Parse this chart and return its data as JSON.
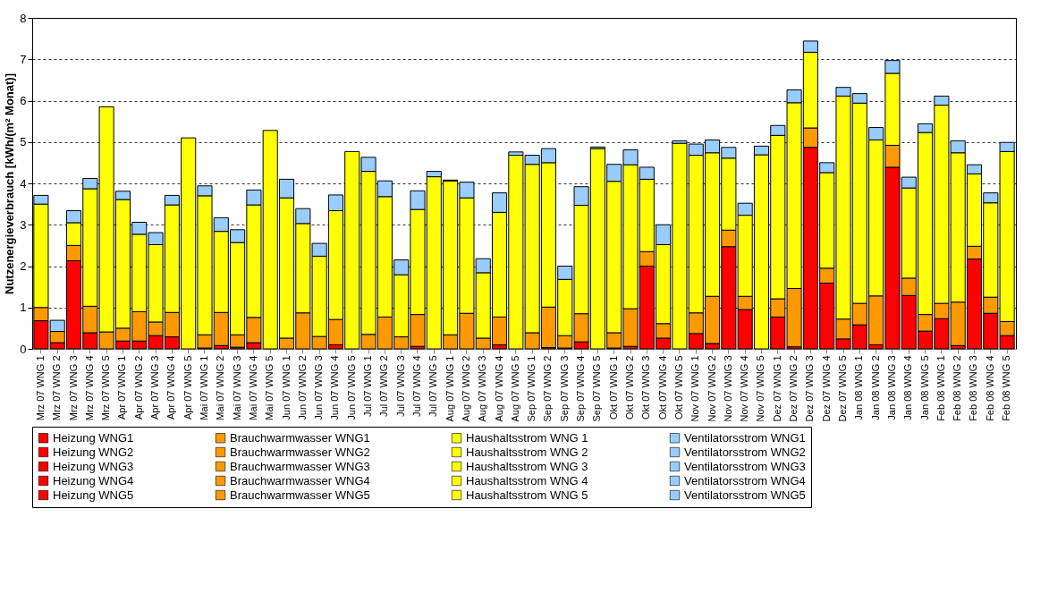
{
  "chart_data": {
    "type": "bar",
    "stacked": true,
    "ylabel": "Nutzenergieverbrauch [kWh/(m² Monat)]",
    "ylim": [
      0,
      8
    ],
    "yticks": [
      0,
      1,
      2,
      3,
      4,
      5,
      6,
      7,
      8
    ],
    "grid": "y",
    "legend": "bottom",
    "categories": [
      "Mrz 07 WNG 1",
      "Mrz 07 WNG 2",
      "Mrz 07 WNG 3",
      "Mrz 07 WNG 4",
      "Mrz 07 WNG 5",
      "Apr 07 WNG 1",
      "Apr 07 WNG 2",
      "Apr 07 WNG 3",
      "Apr 07 WNG 4",
      "Apr 07 WNG 5",
      "Mai 07 WNG 1",
      "Mai 07 WNG 2",
      "Mai 07 WNG 3",
      "Mai 07 WNG 4",
      "Mai 07 WNG 5",
      "Jun 07 WNG 1",
      "Jun 07 WNG 2",
      "Jun 07 WNG 3",
      "Jun 07 WNG 4",
      "Jun 07 WNG 5",
      "Jul 07 WNG 1",
      "Jul 07 WNG 2",
      "Jul 07 WNG 3",
      "Jul 07 WNG 4",
      "Jul 07 WNG 5",
      "Aug 07 WNG 1",
      "Aug 07 WNG 2",
      "Aug 07 WNG 3",
      "Aug 07 WNG 4",
      "Aug 07 WNG 5",
      "Sep 07 WNG 1",
      "Sep 07 WNG 2",
      "Sep 07 WNG 3",
      "Sep 07 WNG 4",
      "Sep 07 WNG 5",
      "Okt 07 WNG 1",
      "Okt 07 WNG 2",
      "Okt 07 WNG 3",
      "Okt 07 WNG 4",
      "Okt 07 WNG 5",
      "Nov 07 WNG 1",
      "Nov 07 WNG 2",
      "Nov 07 WNG 3",
      "Nov 07 WNG 4",
      "Nov 07 WNG 5",
      "Dez 07 WNG 1",
      "Dez 07 WNG 2",
      "Dez 07 WNG 3",
      "Dez 07 WNG 4",
      "Dez 07 WNG 5",
      "Jan 08 WNG 1",
      "Jan 08 WNG 2",
      "Jan 08 WNG 3",
      "Jan 08 WNG 4",
      "Jan 08 WNG 5",
      "Feb 08 WNG 1",
      "Feb 08 WNG 2",
      "Feb 08 WNG 3",
      "Feb 08 WNG 4",
      "Feb 08 WNG 5"
    ],
    "series": [
      {
        "name": "Heizung WNG1",
        "color": "#ff0000",
        "values": [
          0.68,
          null,
          null,
          null,
          null,
          0.19,
          null,
          null,
          null,
          null,
          0.02,
          null,
          null,
          null,
          null,
          null,
          null,
          null,
          null,
          null,
          null,
          null,
          null,
          null,
          null,
          null,
          null,
          null,
          null,
          null,
          null,
          null,
          null,
          null,
          null,
          0.02,
          null,
          null,
          null,
          null,
          0.37,
          null,
          null,
          null,
          null,
          0.77,
          null,
          null,
          null,
          null,
          0.58,
          null,
          null,
          null,
          null,
          0.73,
          null,
          null,
          null,
          null
        ]
      },
      {
        "name": "Brauchwarmwasser WNG1",
        "color": "#ff9900",
        "values": [
          0.32,
          null,
          null,
          null,
          null,
          0.31,
          null,
          null,
          null,
          null,
          0.32,
          null,
          null,
          null,
          null,
          0.26,
          null,
          null,
          null,
          null,
          0.35,
          null,
          null,
          null,
          null,
          0.34,
          null,
          null,
          null,
          null,
          0.39,
          null,
          null,
          null,
          null,
          0.37,
          null,
          null,
          null,
          null,
          0.5,
          null,
          null,
          null,
          null,
          0.44,
          null,
          null,
          null,
          null,
          0.52,
          null,
          null,
          null,
          null,
          0.37,
          null,
          null,
          null,
          null
        ]
      },
      {
        "name": "Haushaltsstrom WNG 1",
        "color": "#ffff00",
        "values": [
          2.5,
          null,
          null,
          null,
          null,
          3.11,
          null,
          null,
          null,
          null,
          3.36,
          null,
          null,
          null,
          null,
          3.39,
          null,
          null,
          null,
          null,
          3.94,
          null,
          null,
          null,
          null,
          3.72,
          null,
          null,
          null,
          null,
          4.07,
          null,
          null,
          null,
          null,
          3.66,
          null,
          null,
          null,
          null,
          3.81,
          null,
          null,
          null,
          null,
          3.95,
          null,
          null,
          null,
          null,
          4.84,
          null,
          null,
          null,
          null,
          4.79,
          null,
          null,
          null,
          null
        ]
      },
      {
        "name": "Ventilatorsstrom WNG1",
        "color": "#99ccff",
        "values": [
          0.21,
          null,
          null,
          null,
          null,
          0.2,
          null,
          null,
          null,
          null,
          0.24,
          null,
          null,
          null,
          null,
          0.45,
          null,
          null,
          null,
          null,
          0.34,
          null,
          null,
          null,
          null,
          0.02,
          null,
          null,
          null,
          null,
          0.22,
          null,
          null,
          null,
          null,
          0.41,
          null,
          null,
          null,
          null,
          0.27,
          null,
          null,
          null,
          null,
          0.24,
          null,
          null,
          null,
          null,
          0.23,
          null,
          null,
          null,
          null,
          0.22,
          null,
          null,
          null,
          null
        ]
      },
      {
        "name": "Heizung WNG2",
        "color": "#ff0000",
        "values": [
          null,
          0.15,
          null,
          null,
          null,
          null,
          0.19,
          null,
          null,
          null,
          null,
          0.08,
          null,
          null,
          null,
          null,
          null,
          null,
          null,
          null,
          null,
          null,
          null,
          null,
          null,
          null,
          null,
          null,
          null,
          null,
          null,
          0.03,
          null,
          null,
          null,
          null,
          0.06,
          null,
          null,
          null,
          null,
          0.13,
          null,
          null,
          null,
          null,
          0.05,
          null,
          null,
          null,
          null,
          0.1,
          null,
          null,
          null,
          null,
          0.08,
          null,
          null,
          null
        ]
      },
      {
        "name": "Brauchwarmwasser WNG2",
        "color": "#ff9900",
        "values": [
          null,
          0.27,
          null,
          null,
          null,
          null,
          0.71,
          null,
          null,
          null,
          null,
          0.8,
          null,
          null,
          null,
          null,
          0.87,
          null,
          null,
          null,
          null,
          0.77,
          null,
          null,
          null,
          null,
          0.86,
          null,
          null,
          null,
          null,
          0.98,
          null,
          null,
          null,
          null,
          0.91,
          null,
          null,
          null,
          null,
          1.14,
          null,
          null,
          null,
          null,
          1.41,
          null,
          null,
          null,
          null,
          1.18,
          null,
          null,
          null,
          null,
          1.05,
          null,
          null,
          null
        ]
      },
      {
        "name": "Haushaltsstrom WNG 2",
        "color": "#ffff00",
        "values": [
          null,
          null,
          null,
          null,
          null,
          null,
          1.87,
          null,
          null,
          null,
          null,
          1.96,
          null,
          null,
          null,
          null,
          2.16,
          null,
          null,
          null,
          null,
          2.91,
          null,
          null,
          null,
          null,
          2.79,
          null,
          null,
          null,
          null,
          3.49,
          null,
          null,
          null,
          null,
          3.48,
          null,
          null,
          null,
          null,
          3.47,
          null,
          null,
          null,
          null,
          4.49,
          null,
          null,
          null,
          null,
          3.77,
          null,
          null,
          null,
          null,
          3.61,
          null,
          null,
          null
        ]
      },
      {
        "name": "Ventilatorsstrom WNG2",
        "color": "#99ccff",
        "values": [
          null,
          0.27,
          null,
          null,
          null,
          null,
          0.29,
          null,
          null,
          null,
          null,
          0.33,
          null,
          null,
          null,
          null,
          0.36,
          null,
          null,
          null,
          null,
          0.38,
          null,
          null,
          null,
          null,
          0.38,
          null,
          null,
          null,
          null,
          0.34,
          null,
          null,
          null,
          null,
          0.36,
          null,
          null,
          null,
          null,
          0.31,
          null,
          null,
          null,
          null,
          0.31,
          null,
          null,
          null,
          null,
          0.3,
          null,
          null,
          null,
          null,
          0.29,
          null,
          null,
          null
        ]
      },
      {
        "name": "Heizung WNG3",
        "color": "#ff0000",
        "values": [
          null,
          null,
          2.13,
          null,
          null,
          null,
          null,
          0.32,
          null,
          null,
          null,
          null,
          0.04,
          null,
          null,
          null,
          null,
          null,
          null,
          null,
          null,
          null,
          null,
          null,
          null,
          null,
          null,
          null,
          null,
          null,
          null,
          null,
          0.02,
          null,
          null,
          null,
          null,
          2.0,
          null,
          null,
          null,
          null,
          2.47,
          null,
          null,
          null,
          null,
          4.87,
          null,
          null,
          null,
          null,
          4.39,
          null,
          null,
          null,
          null,
          2.17,
          null,
          null
        ]
      },
      {
        "name": "Brauchwarmwasser WNG3",
        "color": "#ff9900",
        "values": [
          null,
          null,
          0.37,
          null,
          null,
          null,
          null,
          0.33,
          null,
          null,
          null,
          null,
          0.3,
          null,
          null,
          null,
          null,
          0.3,
          null,
          null,
          null,
          null,
          0.29,
          null,
          null,
          null,
          null,
          0.26,
          null,
          null,
          null,
          null,
          0.3,
          null,
          null,
          null,
          null,
          0.35,
          null,
          null,
          null,
          null,
          0.4,
          null,
          null,
          null,
          null,
          0.47,
          null,
          null,
          null,
          null,
          0.53,
          null,
          null,
          null,
          null,
          0.31,
          null,
          null
        ]
      },
      {
        "name": "Haushaltsstrom WNG 3",
        "color": "#ffff00",
        "values": [
          null,
          null,
          0.55,
          null,
          null,
          null,
          null,
          1.87,
          null,
          null,
          null,
          null,
          2.23,
          null,
          null,
          null,
          null,
          1.94,
          null,
          null,
          null,
          null,
          1.5,
          null,
          null,
          null,
          null,
          1.58,
          null,
          null,
          null,
          null,
          1.36,
          null,
          null,
          null,
          null,
          1.75,
          null,
          null,
          null,
          null,
          1.74,
          null,
          null,
          null,
          null,
          1.83,
          null,
          null,
          null,
          null,
          1.74,
          null,
          null,
          null,
          null,
          1.75,
          null,
          null
        ]
      },
      {
        "name": "Ventilatorsstrom WNG3",
        "color": "#99ccff",
        "values": [
          null,
          null,
          0.29,
          null,
          null,
          null,
          null,
          0.29,
          null,
          null,
          null,
          null,
          0.31,
          null,
          null,
          null,
          null,
          0.31,
          null,
          null,
          null,
          null,
          0.36,
          null,
          null,
          null,
          null,
          0.34,
          null,
          null,
          null,
          null,
          0.32,
          null,
          null,
          null,
          null,
          0.29,
          null,
          null,
          null,
          null,
          0.26,
          null,
          null,
          null,
          null,
          0.27,
          null,
          null,
          null,
          null,
          0.31,
          null,
          null,
          null,
          null,
          0.22,
          null,
          null
        ]
      },
      {
        "name": "Heizung WNG4",
        "color": "#ff0000",
        "values": [
          null,
          null,
          null,
          0.39,
          null,
          null,
          null,
          null,
          0.29,
          null,
          null,
          null,
          null,
          0.15,
          null,
          null,
          null,
          null,
          0.1,
          null,
          null,
          null,
          null,
          0.06,
          null,
          null,
          null,
          null,
          0.1,
          null,
          null,
          null,
          null,
          0.17,
          null,
          null,
          null,
          null,
          0.26,
          null,
          null,
          null,
          null,
          0.95,
          null,
          null,
          null,
          null,
          1.59,
          null,
          null,
          null,
          null,
          1.29,
          null,
          null,
          null,
          null,
          0.86,
          null
        ]
      },
      {
        "name": "Brauchwarmwasser WNG4",
        "color": "#ff9900",
        "values": [
          null,
          null,
          null,
          0.64,
          null,
          null,
          null,
          null,
          0.59,
          null,
          null,
          null,
          null,
          0.61,
          null,
          null,
          null,
          null,
          0.61,
          null,
          null,
          null,
          null,
          0.77,
          null,
          null,
          null,
          null,
          0.67,
          null,
          null,
          null,
          null,
          0.68,
          null,
          null,
          null,
          null,
          0.35,
          null,
          null,
          null,
          null,
          0.32,
          null,
          null,
          null,
          null,
          0.36,
          null,
          null,
          null,
          null,
          0.42,
          null,
          null,
          null,
          null,
          0.39,
          null
        ]
      },
      {
        "name": "Haushaltsstrom WNG 4",
        "color": "#ffff00",
        "values": [
          null,
          null,
          null,
          2.84,
          null,
          null,
          null,
          null,
          2.6,
          null,
          null,
          null,
          null,
          2.72,
          null,
          null,
          null,
          null,
          2.63,
          null,
          null,
          null,
          null,
          2.54,
          null,
          null,
          null,
          null,
          2.53,
          null,
          null,
          null,
          null,
          2.62,
          null,
          null,
          null,
          null,
          1.91,
          null,
          null,
          null,
          null,
          1.96,
          null,
          null,
          null,
          null,
          2.31,
          null,
          null,
          null,
          null,
          2.18,
          null,
          null,
          null,
          null,
          2.28,
          null
        ]
      },
      {
        "name": "Ventilatorsstrom WNG4",
        "color": "#99ccff",
        "values": [
          null,
          null,
          null,
          0.25,
          null,
          null,
          null,
          null,
          0.23,
          null,
          null,
          null,
          null,
          0.36,
          null,
          null,
          null,
          null,
          0.38,
          null,
          null,
          null,
          null,
          0.45,
          null,
          null,
          null,
          null,
          0.47,
          null,
          null,
          null,
          null,
          0.45,
          null,
          null,
          null,
          null,
          0.48,
          null,
          null,
          null,
          null,
          0.29,
          null,
          null,
          null,
          null,
          0.24,
          null,
          null,
          null,
          null,
          0.26,
          null,
          null,
          null,
          null,
          0.24,
          null
        ]
      },
      {
        "name": "Heizung WNG5",
        "color": "#ff0000",
        "values": [
          null,
          null,
          null,
          null,
          null,
          null,
          null,
          null,
          null,
          null,
          null,
          null,
          null,
          null,
          null,
          null,
          null,
          null,
          null,
          null,
          null,
          null,
          null,
          null,
          null,
          null,
          null,
          null,
          null,
          null,
          null,
          null,
          null,
          null,
          null,
          null,
          null,
          null,
          null,
          null,
          null,
          null,
          null,
          null,
          null,
          null,
          null,
          null,
          null,
          0.24,
          null,
          null,
          null,
          null,
          0.43,
          null,
          null,
          null,
          null,
          0.32
        ]
      },
      {
        "name": "Brauchwarmwasser WNG5",
        "color": "#ff9900",
        "values": [
          null,
          null,
          null,
          null,
          0.41,
          null,
          null,
          null,
          null,
          null,
          null,
          null,
          null,
          null,
          null,
          null,
          null,
          null,
          null,
          null,
          null,
          null,
          null,
          null,
          null,
          null,
          null,
          null,
          null,
          null,
          null,
          null,
          null,
          null,
          null,
          null,
          null,
          null,
          null,
          null,
          null,
          null,
          null,
          null,
          null,
          null,
          null,
          null,
          null,
          0.48,
          null,
          null,
          null,
          null,
          0.4,
          null,
          null,
          null,
          null,
          0.34
        ]
      },
      {
        "name": "Haushaltsstrom WNG 5",
        "color": "#ffff00",
        "values": [
          null,
          null,
          null,
          null,
          5.44,
          null,
          null,
          null,
          null,
          5.1,
          null,
          null,
          null,
          null,
          5.28,
          null,
          null,
          null,
          null,
          4.77,
          null,
          null,
          null,
          null,
          4.16,
          null,
          null,
          null,
          null,
          4.68,
          null,
          null,
          null,
          null,
          4.84,
          null,
          null,
          null,
          null,
          4.97,
          null,
          null,
          null,
          null,
          4.69,
          null,
          null,
          null,
          null,
          5.39,
          null,
          null,
          null,
          null,
          4.4,
          null,
          null,
          null,
          null,
          4.11
        ]
      },
      {
        "name": "Ventilatorsstrom WNG5",
        "color": "#99ccff",
        "values": [
          null,
          null,
          null,
          null,
          null,
          null,
          null,
          null,
          null,
          null,
          null,
          null,
          null,
          null,
          null,
          null,
          null,
          null,
          null,
          null,
          null,
          null,
          null,
          null,
          0.13,
          null,
          null,
          null,
          null,
          0.08,
          null,
          null,
          null,
          null,
          0.04,
          null,
          null,
          null,
          null,
          0.06,
          null,
          null,
          null,
          null,
          0.21,
          null,
          null,
          null,
          null,
          0.21,
          null,
          null,
          null,
          null,
          0.21,
          null,
          null,
          null,
          null,
          0.22
        ]
      }
    ]
  }
}
